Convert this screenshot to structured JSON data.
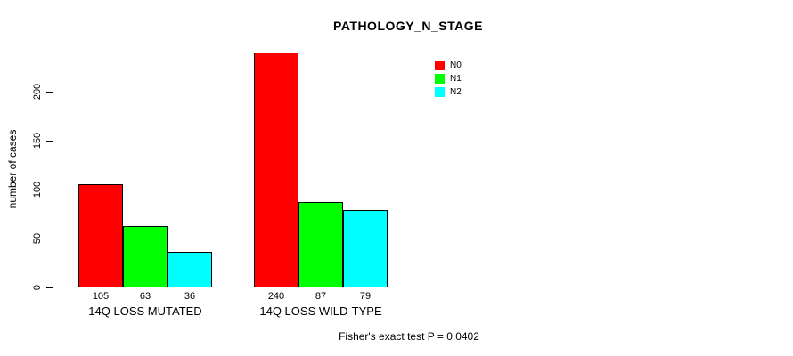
{
  "chart_data": {
    "type": "bar",
    "title": "PATHOLOGY_N_STAGE",
    "xlabel": "",
    "ylabel": "number of cases",
    "categories": [
      "14Q LOSS MUTATED",
      "14Q LOSS WILD-TYPE"
    ],
    "series": [
      {
        "name": "N0",
        "color": "#FF0000",
        "values": [
          105,
          240
        ]
      },
      {
        "name": "N1",
        "color": "#00FF00",
        "values": [
          63,
          87
        ]
      },
      {
        "name": "N2",
        "color": "#00FFFF",
        "values": [
          36,
          79
        ]
      }
    ],
    "bar_value_labels": [
      [
        105,
        63,
        36
      ],
      [
        240,
        87,
        79
      ]
    ],
    "yticks": [
      0,
      50,
      100,
      150,
      200
    ],
    "ylim": [
      0,
      245
    ],
    "grid": false,
    "legend_position": "top-right",
    "footnote": "Fisher's exact test P = 0.0402"
  },
  "colors": {
    "background": "#FFFFFF",
    "axis": "#000000",
    "text": "#000000"
  }
}
